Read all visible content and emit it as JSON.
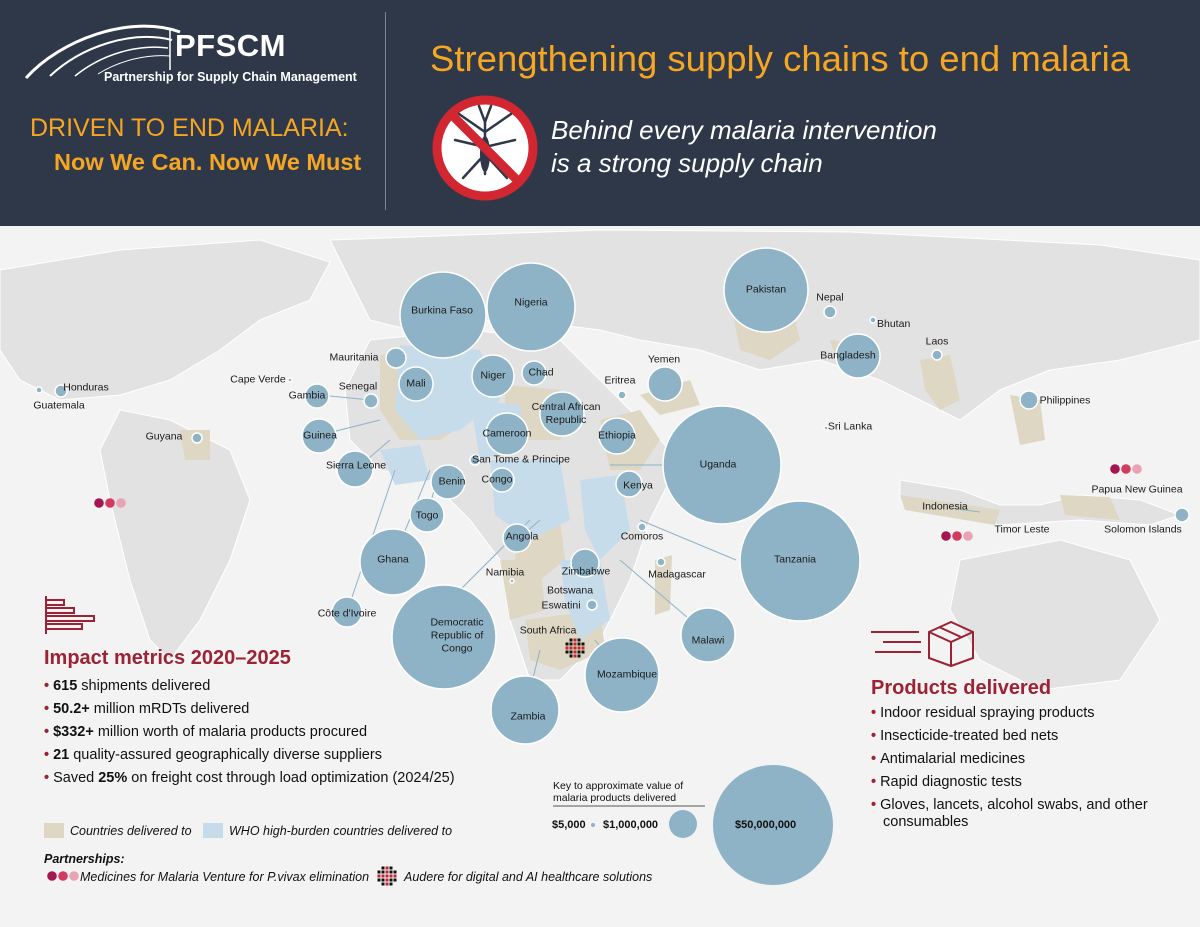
{
  "header": {
    "logo_name": "PFSCM",
    "logo_subtitle": "Partnership for Supply Chain Management",
    "slogan_line1": "DRIVEN TO END MALARIA:",
    "slogan_line2": "Now We Can. Now We Must",
    "headline": "Strengthening supply chains to end malaria",
    "tagline_line1": "Behind every malaria intervention",
    "tagline_line2": "is a strong supply chain",
    "icon": "no-mosquito-icon"
  },
  "colors": {
    "header_bg": "#2e3849",
    "accent_orange": "#f5a623",
    "accent_red": "#9b2335",
    "bubble": "#8fb3c6",
    "countries_delivered": "#ddd7c4",
    "who_high_burden": "#c7dcea",
    "map_land": "#e7e7e8"
  },
  "countries": [
    {
      "name": "Burkina Faso"
    },
    {
      "name": "Nigeria"
    },
    {
      "name": "Pakistan"
    },
    {
      "name": "Nepal"
    },
    {
      "name": "Bhutan"
    },
    {
      "name": "Mauritania"
    },
    {
      "name": "Mali"
    },
    {
      "name": "Niger"
    },
    {
      "name": "Chad"
    },
    {
      "name": "Yemen"
    },
    {
      "name": "Bangladesh"
    },
    {
      "name": "Laos"
    },
    {
      "name": "Cape Verde"
    },
    {
      "name": "Senegal"
    },
    {
      "name": "Gambia"
    },
    {
      "name": "Eritrea"
    },
    {
      "name": "Central African Republic"
    },
    {
      "name": "Honduras"
    },
    {
      "name": "Guatemala"
    },
    {
      "name": "Philippines"
    },
    {
      "name": "Guinea"
    },
    {
      "name": "Cameroon"
    },
    {
      "name": "Ethiopia"
    },
    {
      "name": "Sri Lanka"
    },
    {
      "name": "Guyana"
    },
    {
      "name": "San Tome & Principe"
    },
    {
      "name": "Sierra Leone"
    },
    {
      "name": "Uganda"
    },
    {
      "name": "Benin"
    },
    {
      "name": "Congo"
    },
    {
      "name": "Kenya"
    },
    {
      "name": "Papua New Guinea"
    },
    {
      "name": "Indonesia"
    },
    {
      "name": "Togo"
    },
    {
      "name": "Timor Leste"
    },
    {
      "name": "Solomon Islands"
    },
    {
      "name": "Angola"
    },
    {
      "name": "Comoros"
    },
    {
      "name": "Ghana"
    },
    {
      "name": "Zimbabwe"
    },
    {
      "name": "Tanzania"
    },
    {
      "name": "Namibia"
    },
    {
      "name": "Madagascar"
    },
    {
      "name": "Botswana"
    },
    {
      "name": "Eswatini"
    },
    {
      "name": "Côte d'Ivoire"
    },
    {
      "name": "Democratic Republic of Congo"
    },
    {
      "name": "South Africa"
    },
    {
      "name": "Malawi"
    },
    {
      "name": "Mozambique"
    },
    {
      "name": "Zambia"
    }
  ],
  "impact": {
    "title": "Impact metrics 2020–2025",
    "items": [
      {
        "bold": "615",
        "text": " shipments delivered"
      },
      {
        "bold": "50.2+",
        "text": " million mRDTs delivered"
      },
      {
        "bold": "$332+",
        "text": " million worth of malaria products procured"
      },
      {
        "bold": "21",
        "text": " quality-assured geographically diverse suppliers"
      },
      {
        "pre": "Saved ",
        "bold": "25%",
        "text": " on freight cost through load optimization (2024/25)"
      }
    ],
    "icon": "bar-chart-icon"
  },
  "products": {
    "title": "Products delivered",
    "items": [
      "Indoor residual spraying products",
      "Insecticide-treated bed nets",
      "Antimalarial medicines",
      "Rapid diagnostic tests",
      "Gloves, lancets, alcohol swabs, and other consumables"
    ],
    "icon": "delivery-box-icon"
  },
  "legend": {
    "countries_delivered": "Countries delivered to",
    "who_high_burden": "WHO high-burden countries delivered to"
  },
  "key": {
    "title_line1": "Key to approximate value of",
    "title_line2": "malaria products delivered",
    "small": "$5,000",
    "medium": "$1,000,000",
    "large": "$50,000,000"
  },
  "partnerships": {
    "title": "Partnerships:",
    "mmv": "Medicines for Malaria Venture for P.vivax elimination",
    "audere": "Audere for digital and AI healthcare solutions"
  }
}
